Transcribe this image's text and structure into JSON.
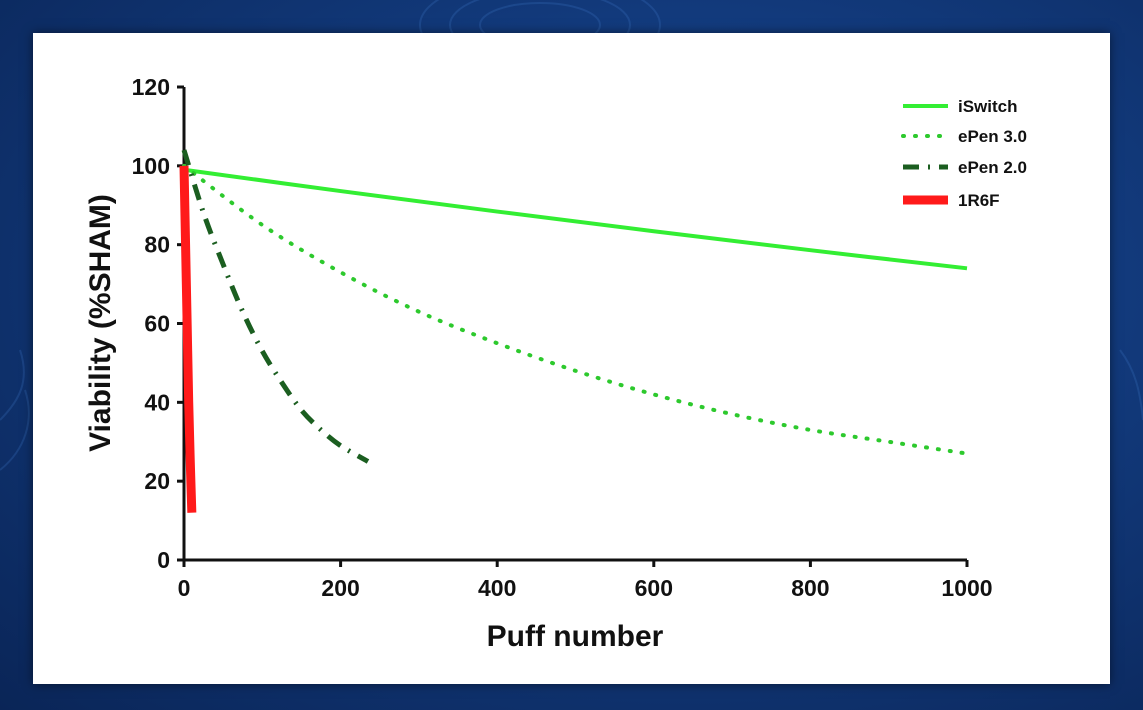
{
  "colors": {
    "iswitch": "#33ee33",
    "epen3": "#2dc92d",
    "epen2": "#1b5e20",
    "r16f": "#ff1a1a",
    "axis": "#111111"
  },
  "chart_data": {
    "type": "line",
    "title": "",
    "xlabel": "Puff number",
    "ylabel": "Viability (%SHAM)",
    "xlim": [
      0,
      1000
    ],
    "ylim": [
      0,
      120
    ],
    "xticks": [
      "0",
      "200",
      "400",
      "600",
      "800",
      "1000"
    ],
    "yticks": [
      "0",
      "20",
      "40",
      "60",
      "80",
      "100",
      "120"
    ],
    "legend_position": "top-right",
    "series": [
      {
        "name": "iSwitch",
        "style": "solid",
        "x": [
          0,
          200,
          400,
          600,
          800,
          1000
        ],
        "y": [
          99,
          93.6,
          88.4,
          83.4,
          78.6,
          74
        ]
      },
      {
        "name": "ePen 3.0",
        "style": "dotted",
        "x": [
          0,
          100,
          200,
          300,
          400,
          500,
          600,
          700,
          800,
          900,
          1000
        ],
        "y": [
          100,
          85,
          73,
          63,
          55,
          48,
          42,
          37,
          33,
          30,
          27
        ]
      },
      {
        "name": "ePen 2.0",
        "style": "dashdot",
        "x": [
          0,
          25,
          50,
          75,
          100,
          125,
          150,
          175,
          200,
          235
        ],
        "y": [
          104,
          88,
          75,
          63,
          53,
          45,
          38,
          33,
          29,
          25
        ]
      },
      {
        "name": "1R6F",
        "style": "thick",
        "x": [
          0,
          2,
          4,
          6,
          8,
          10
        ],
        "y": [
          100,
          80,
          60,
          40,
          25,
          12
        ]
      }
    ]
  }
}
